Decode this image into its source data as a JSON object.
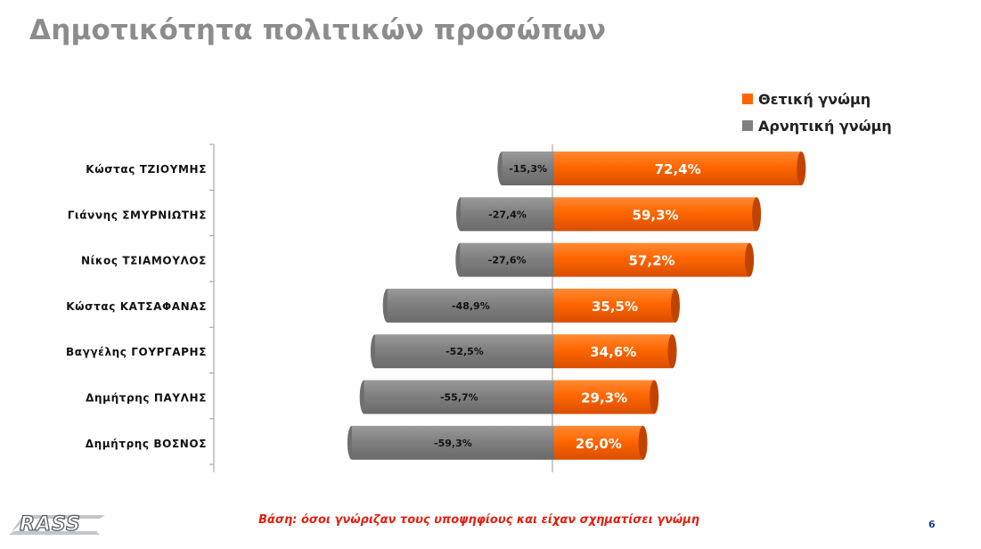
{
  "page": {
    "title": "Δημοτικότητα πολιτικών προσώπων",
    "footnote": "Βάση: όσοι γνώριζαν τους υποψηφίους και είχαν σχηματίσει γνώμη",
    "page_number": "6",
    "logo_text": "RASS"
  },
  "colors": {
    "positive": "#ff6600",
    "negative": "#808080",
    "title": "#8c8c8c",
    "footnote": "#e02010"
  },
  "chart_data": {
    "type": "bar",
    "orientation": "horizontal",
    "stacked": "diverging",
    "categories": [
      "Κώστας ΤΖΙΟΥΜΗΣ",
      "Γιάννης ΣΜΥΡΝΙΩΤΗΣ",
      "Νίκος ΤΣΙΑΜΟΥΛΟΣ",
      "Κώστας ΚΑΤΣΑΦΑΝΑΣ",
      "Βαγγέλης ΓΟΥΡΓΑΡΗΣ",
      "Δημήτρης ΠΑΥΛΗΣ",
      "Δημήτρης ΒΟΣΝΟΣ"
    ],
    "series": [
      {
        "name": "Θετική γνώμη",
        "values": [
          72.4,
          59.3,
          57.2,
          35.5,
          34.6,
          29.3,
          26.0
        ],
        "labels": [
          "72,4%",
          "59,3%",
          "57,2%",
          "35,5%",
          "34,6%",
          "29,3%",
          "26,0%"
        ]
      },
      {
        "name": "Αρνητική γνώμη",
        "values": [
          -15.3,
          -27.4,
          -27.6,
          -48.9,
          -52.5,
          -55.7,
          -59.3
        ],
        "labels": [
          "-15,3%",
          "-27,4%",
          "-27,6%",
          "-48,9%",
          "-52,5%",
          "-55,7%",
          "-59,3%"
        ]
      }
    ],
    "legend": "top-right",
    "grid": false
  }
}
